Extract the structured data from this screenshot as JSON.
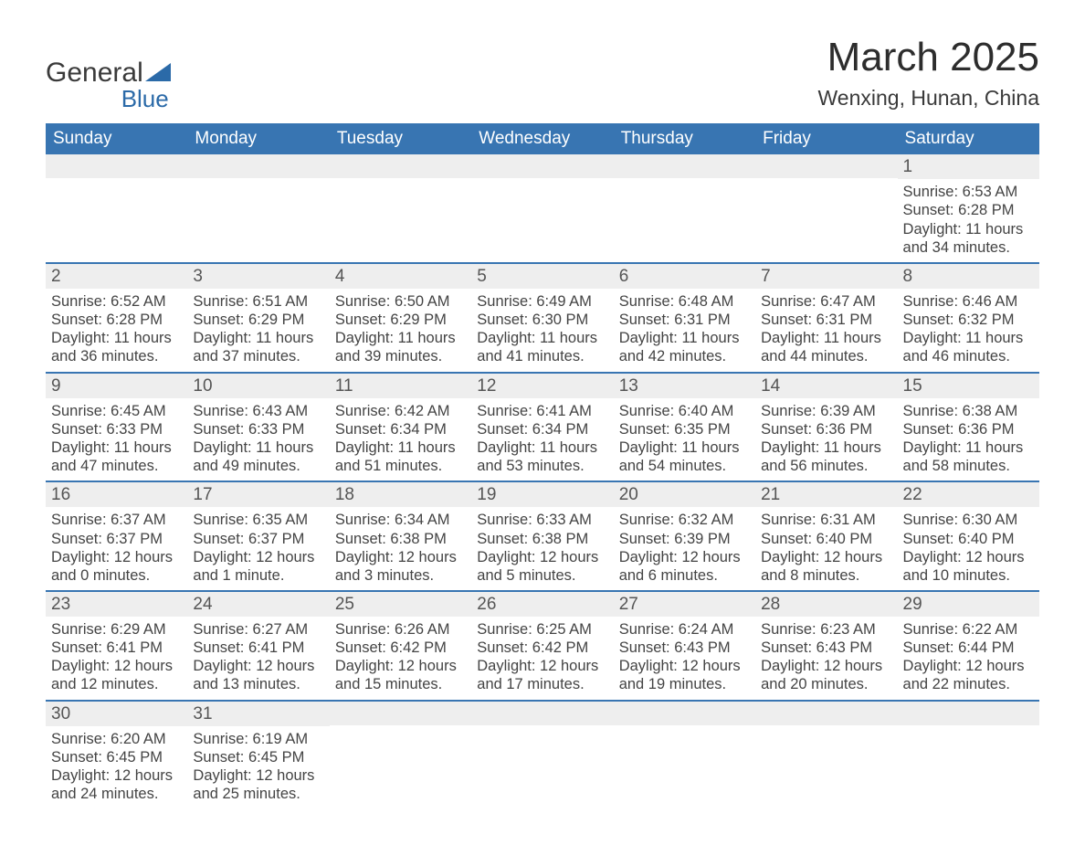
{
  "logo": {
    "word1": "General",
    "word2": "Blue",
    "shape_color": "#2b6aa8",
    "text1_color": "#3a3a3a",
    "text2_color": "#2b6aa8"
  },
  "title": {
    "month": "March 2025",
    "location": "Wenxing, Hunan, China"
  },
  "colors": {
    "header_bg": "#3875b2",
    "header_text": "#ffffff",
    "row_divider": "#3875b2",
    "daynum_bg": "#eeeeee",
    "body_text": "#444444"
  },
  "typography": {
    "month_fontsize": 44,
    "location_fontsize": 23,
    "weekday_fontsize": 19,
    "daynum_fontsize": 19,
    "body_fontsize": 16.5
  },
  "labels": {
    "sunrise": "Sunrise:",
    "sunset": "Sunset:",
    "daylight_prefix": "Daylight:"
  },
  "weekdays": [
    "Sunday",
    "Monday",
    "Tuesday",
    "Wednesday",
    "Thursday",
    "Friday",
    "Saturday"
  ],
  "weeks": [
    [
      {
        "empty": true
      },
      {
        "empty": true
      },
      {
        "empty": true
      },
      {
        "empty": true
      },
      {
        "empty": true
      },
      {
        "empty": true
      },
      {
        "day": "1",
        "sunrise": "6:53 AM",
        "sunset": "6:28 PM",
        "daylight": "11 hours and 34 minutes."
      }
    ],
    [
      {
        "day": "2",
        "sunrise": "6:52 AM",
        "sunset": "6:28 PM",
        "daylight": "11 hours and 36 minutes."
      },
      {
        "day": "3",
        "sunrise": "6:51 AM",
        "sunset": "6:29 PM",
        "daylight": "11 hours and 37 minutes."
      },
      {
        "day": "4",
        "sunrise": "6:50 AM",
        "sunset": "6:29 PM",
        "daylight": "11 hours and 39 minutes."
      },
      {
        "day": "5",
        "sunrise": "6:49 AM",
        "sunset": "6:30 PM",
        "daylight": "11 hours and 41 minutes."
      },
      {
        "day": "6",
        "sunrise": "6:48 AM",
        "sunset": "6:31 PM",
        "daylight": "11 hours and 42 minutes."
      },
      {
        "day": "7",
        "sunrise": "6:47 AM",
        "sunset": "6:31 PM",
        "daylight": "11 hours and 44 minutes."
      },
      {
        "day": "8",
        "sunrise": "6:46 AM",
        "sunset": "6:32 PM",
        "daylight": "11 hours and 46 minutes."
      }
    ],
    [
      {
        "day": "9",
        "sunrise": "6:45 AM",
        "sunset": "6:33 PM",
        "daylight": "11 hours and 47 minutes."
      },
      {
        "day": "10",
        "sunrise": "6:43 AM",
        "sunset": "6:33 PM",
        "daylight": "11 hours and 49 minutes."
      },
      {
        "day": "11",
        "sunrise": "6:42 AM",
        "sunset": "6:34 PM",
        "daylight": "11 hours and 51 minutes."
      },
      {
        "day": "12",
        "sunrise": "6:41 AM",
        "sunset": "6:34 PM",
        "daylight": "11 hours and 53 minutes."
      },
      {
        "day": "13",
        "sunrise": "6:40 AM",
        "sunset": "6:35 PM",
        "daylight": "11 hours and 54 minutes."
      },
      {
        "day": "14",
        "sunrise": "6:39 AM",
        "sunset": "6:36 PM",
        "daylight": "11 hours and 56 minutes."
      },
      {
        "day": "15",
        "sunrise": "6:38 AM",
        "sunset": "6:36 PM",
        "daylight": "11 hours and 58 minutes."
      }
    ],
    [
      {
        "day": "16",
        "sunrise": "6:37 AM",
        "sunset": "6:37 PM",
        "daylight": "12 hours and 0 minutes."
      },
      {
        "day": "17",
        "sunrise": "6:35 AM",
        "sunset": "6:37 PM",
        "daylight": "12 hours and 1 minute."
      },
      {
        "day": "18",
        "sunrise": "6:34 AM",
        "sunset": "6:38 PM",
        "daylight": "12 hours and 3 minutes."
      },
      {
        "day": "19",
        "sunrise": "6:33 AM",
        "sunset": "6:38 PM",
        "daylight": "12 hours and 5 minutes."
      },
      {
        "day": "20",
        "sunrise": "6:32 AM",
        "sunset": "6:39 PM",
        "daylight": "12 hours and 6 minutes."
      },
      {
        "day": "21",
        "sunrise": "6:31 AM",
        "sunset": "6:40 PM",
        "daylight": "12 hours and 8 minutes."
      },
      {
        "day": "22",
        "sunrise": "6:30 AM",
        "sunset": "6:40 PM",
        "daylight": "12 hours and 10 minutes."
      }
    ],
    [
      {
        "day": "23",
        "sunrise": "6:29 AM",
        "sunset": "6:41 PM",
        "daylight": "12 hours and 12 minutes."
      },
      {
        "day": "24",
        "sunrise": "6:27 AM",
        "sunset": "6:41 PM",
        "daylight": "12 hours and 13 minutes."
      },
      {
        "day": "25",
        "sunrise": "6:26 AM",
        "sunset": "6:42 PM",
        "daylight": "12 hours and 15 minutes."
      },
      {
        "day": "26",
        "sunrise": "6:25 AM",
        "sunset": "6:42 PM",
        "daylight": "12 hours and 17 minutes."
      },
      {
        "day": "27",
        "sunrise": "6:24 AM",
        "sunset": "6:43 PM",
        "daylight": "12 hours and 19 minutes."
      },
      {
        "day": "28",
        "sunrise": "6:23 AM",
        "sunset": "6:43 PM",
        "daylight": "12 hours and 20 minutes."
      },
      {
        "day": "29",
        "sunrise": "6:22 AM",
        "sunset": "6:44 PM",
        "daylight": "12 hours and 22 minutes."
      }
    ],
    [
      {
        "day": "30",
        "sunrise": "6:20 AM",
        "sunset": "6:45 PM",
        "daylight": "12 hours and 24 minutes."
      },
      {
        "day": "31",
        "sunrise": "6:19 AM",
        "sunset": "6:45 PM",
        "daylight": "12 hours and 25 minutes."
      },
      {
        "empty": true
      },
      {
        "empty": true
      },
      {
        "empty": true
      },
      {
        "empty": true
      },
      {
        "empty": true
      }
    ]
  ]
}
